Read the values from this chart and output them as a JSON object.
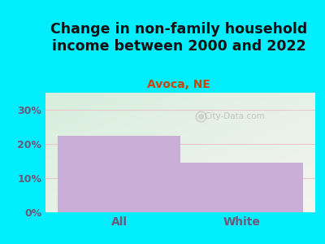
{
  "title": "Change in non-family household\nincome between 2000 and 2022",
  "subtitle": "Avoca, NE",
  "categories": [
    "All",
    "White"
  ],
  "values": [
    22.5,
    14.5
  ],
  "bar_color": "#c9aed6",
  "title_fontsize": 12.5,
  "subtitle_fontsize": 10,
  "subtitle_color": "#cc4400",
  "title_color": "#111111",
  "tick_label_color": "#6b5a7a",
  "xlabel_color": "#6b5a7a",
  "ylim": [
    0,
    35
  ],
  "yticks": [
    0,
    10,
    20,
    30
  ],
  "ytick_labels": [
    "0%",
    "10%",
    "20%",
    "30%"
  ],
  "bg_outer": "#00eeff",
  "bg_plot_topleft": "#d8eedd",
  "bg_plot_bottomright": "#f5f5ee",
  "watermark": "City-Data.com",
  "grid_color": "#e8c8c8",
  "bar_width": 0.5
}
